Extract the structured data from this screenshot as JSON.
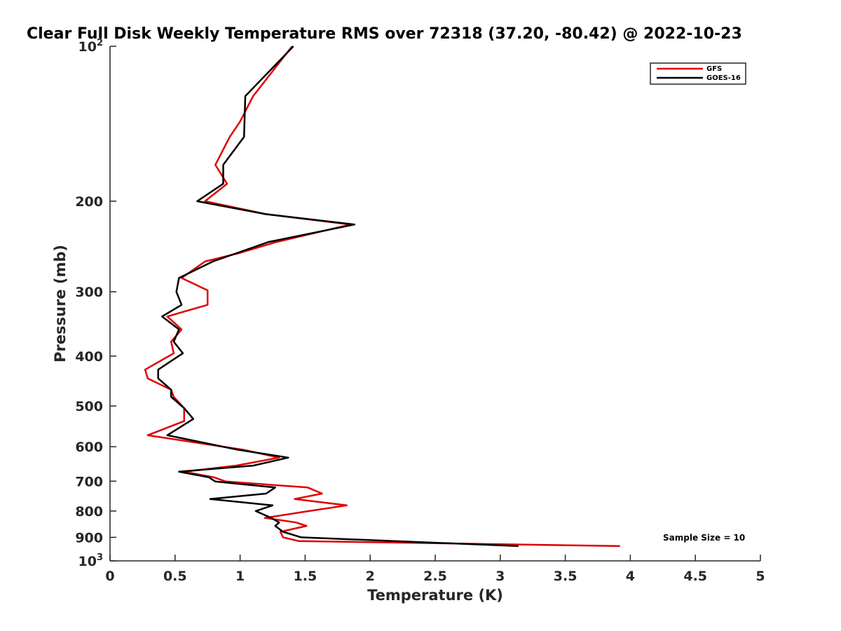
{
  "chart_data": {
    "type": "line",
    "title": "Clear Full Disk Weekly Temperature RMS over 72318 (37.20, -80.42) @ 2022-10-23",
    "xlabel": "Temperature (K)",
    "ylabel": "Pressure (mb)",
    "xlim": [
      0,
      5
    ],
    "ylim": [
      100,
      1000
    ],
    "yscale": "log",
    "y_reversed": true,
    "grid": false,
    "legend_position": "top-right",
    "x_ticks": [
      "0",
      "0.5",
      "1",
      "1.5",
      "2",
      "2.5",
      "3",
      "3.5",
      "4",
      "4.5",
      "5"
    ],
    "x_tick_values": [
      0,
      0.5,
      1,
      1.5,
      2,
      2.5,
      3,
      3.5,
      4,
      4.5,
      5
    ],
    "y_ticks": [
      {
        "value": 100,
        "base": "10",
        "exp": "2"
      },
      {
        "value": 200,
        "label": "200"
      },
      {
        "value": 300,
        "label": "300"
      },
      {
        "value": 400,
        "label": "400"
      },
      {
        "value": 500,
        "label": "500"
      },
      {
        "value": 600,
        "label": "600"
      },
      {
        "value": 700,
        "label": "700"
      },
      {
        "value": 800,
        "label": "800"
      },
      {
        "value": 900,
        "label": "900"
      },
      {
        "value": 1000,
        "base": "10",
        "exp": "3"
      }
    ],
    "annotation": "Sample Size = 10",
    "series": [
      {
        "name": "GFS",
        "color": "#e00000",
        "points": [
          [
            1.4,
            100
          ],
          [
            1.1,
            125
          ],
          [
            1.0,
            140
          ],
          [
            0.92,
            150
          ],
          [
            0.81,
            170
          ],
          [
            0.9,
            185
          ],
          [
            0.73,
            200
          ],
          [
            1.2,
            212
          ],
          [
            1.85,
            222
          ],
          [
            1.28,
            240
          ],
          [
            1.0,
            252
          ],
          [
            0.73,
            262
          ],
          [
            0.55,
            282
          ],
          [
            0.75,
            298
          ],
          [
            0.75,
            318
          ],
          [
            0.44,
            335
          ],
          [
            0.55,
            355
          ],
          [
            0.47,
            375
          ],
          [
            0.49,
            395
          ],
          [
            0.27,
            425
          ],
          [
            0.29,
            442
          ],
          [
            0.47,
            465
          ],
          [
            0.49,
            480
          ],
          [
            0.57,
            505
          ],
          [
            0.57,
            535
          ],
          [
            0.29,
            570
          ],
          [
            1.02,
            608
          ],
          [
            1.3,
            630
          ],
          [
            0.97,
            653
          ],
          [
            0.57,
            671
          ],
          [
            0.8,
            688
          ],
          [
            0.89,
            701
          ],
          [
            1.52,
            720
          ],
          [
            1.63,
            740
          ],
          [
            1.42,
            758
          ],
          [
            1.82,
            780
          ],
          [
            1.53,
            800
          ],
          [
            1.19,
            825
          ],
          [
            1.43,
            842
          ],
          [
            1.51,
            855
          ],
          [
            1.31,
            878
          ],
          [
            1.33,
            900
          ],
          [
            1.45,
            915
          ],
          [
            3.92,
            936
          ]
        ]
      },
      {
        "name": "GOES-16",
        "color": "#000000",
        "points": [
          [
            1.41,
            100
          ],
          [
            1.04,
            125
          ],
          [
            1.03,
            150
          ],
          [
            0.87,
            170
          ],
          [
            0.87,
            185
          ],
          [
            0.67,
            200
          ],
          [
            1.2,
            212
          ],
          [
            1.88,
            222
          ],
          [
            1.22,
            240
          ],
          [
            0.79,
            262
          ],
          [
            0.53,
            282
          ],
          [
            0.51,
            300
          ],
          [
            0.55,
            318
          ],
          [
            0.4,
            335
          ],
          [
            0.53,
            355
          ],
          [
            0.49,
            375
          ],
          [
            0.56,
            395
          ],
          [
            0.37,
            425
          ],
          [
            0.37,
            442
          ],
          [
            0.47,
            465
          ],
          [
            0.47,
            480
          ],
          [
            0.57,
            505
          ],
          [
            0.64,
            530
          ],
          [
            0.44,
            570
          ],
          [
            0.98,
            608
          ],
          [
            1.37,
            630
          ],
          [
            1.1,
            653
          ],
          [
            0.53,
            671
          ],
          [
            0.76,
            688
          ],
          [
            0.81,
            701
          ],
          [
            1.27,
            720
          ],
          [
            1.2,
            740
          ],
          [
            0.77,
            758
          ],
          [
            1.25,
            780
          ],
          [
            1.12,
            800
          ],
          [
            1.24,
            825
          ],
          [
            1.3,
            842
          ],
          [
            1.27,
            855
          ],
          [
            1.33,
            878
          ],
          [
            1.47,
            900
          ],
          [
            3.14,
            936
          ]
        ]
      }
    ]
  }
}
